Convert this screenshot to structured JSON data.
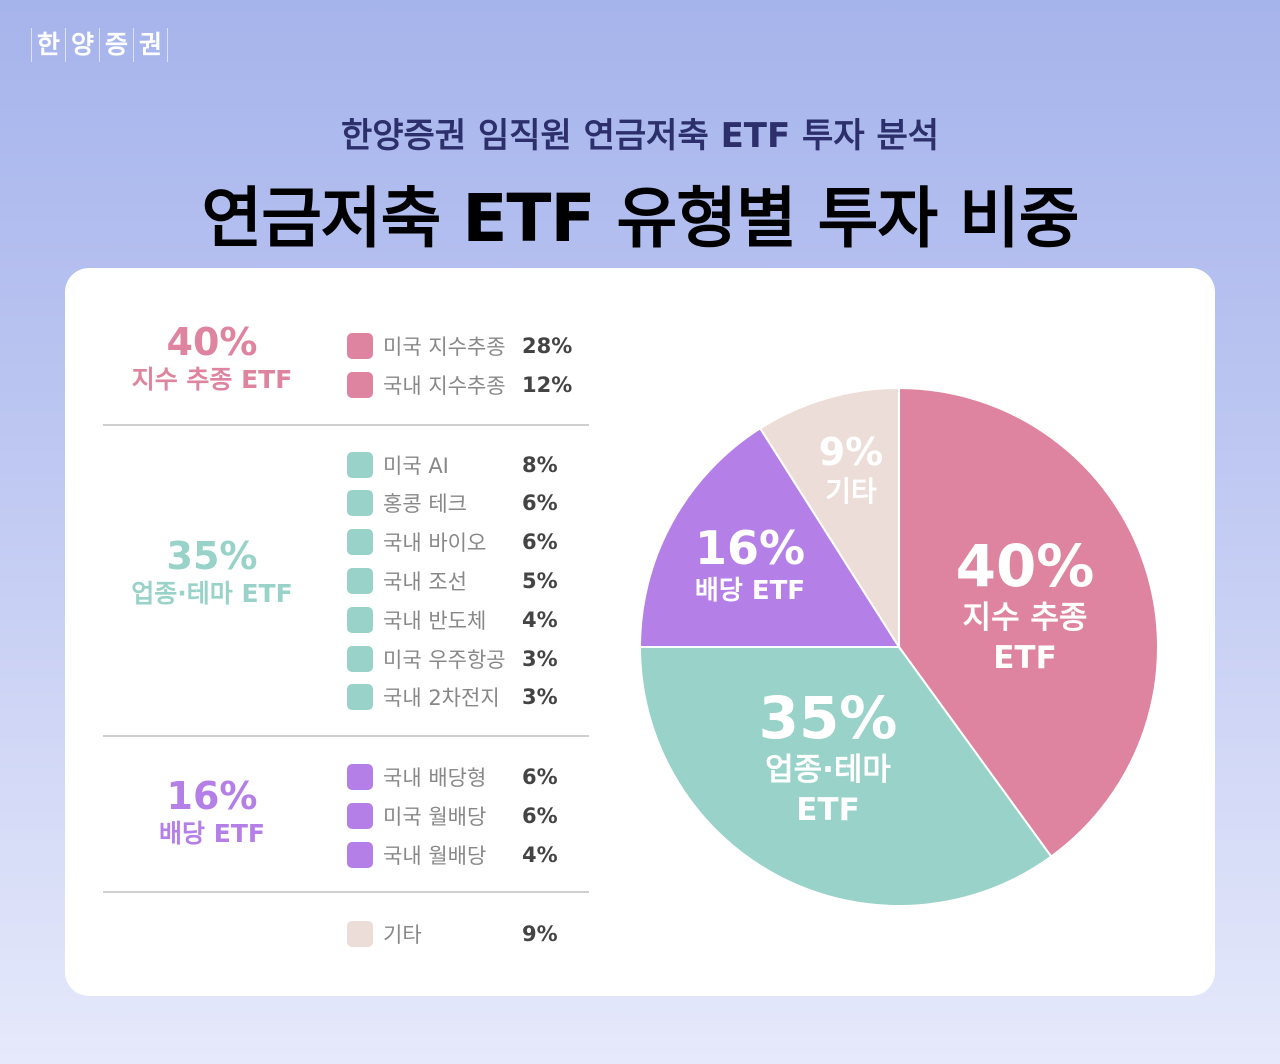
{
  "logo": [
    "한",
    "양",
    "증",
    "권"
  ],
  "subtitle": "한양증권 임직원 연금저축 ETF 투자 분석",
  "title": "연금저축 ETF 유형별 투자 비중",
  "groups": [
    {
      "percent": "40%",
      "name": "지수 추종 ETF",
      "color": "#df84a0"
    },
    {
      "percent": "35%",
      "name": "업종·테마 ETF",
      "color": "#98d2c8"
    },
    {
      "percent": "16%",
      "name": "배당 ETF",
      "color": "#b57fe8"
    }
  ],
  "legend": [
    {
      "label": "미국 지수추종",
      "value": "28%",
      "color": "#df84a0"
    },
    {
      "label": "국내 지수추종",
      "value": "12%",
      "color": "#df84a0"
    },
    {
      "label": "미국 AI",
      "value": "8%",
      "color": "#98d2c8"
    },
    {
      "label": "홍콩 테크",
      "value": "6%",
      "color": "#98d2c8"
    },
    {
      "label": "국내 바이오",
      "value": "6%",
      "color": "#98d2c8"
    },
    {
      "label": "국내 조선",
      "value": "5%",
      "color": "#98d2c8"
    },
    {
      "label": "국내 반도체",
      "value": "4%",
      "color": "#98d2c8"
    },
    {
      "label": "미국 우주항공",
      "value": "3%",
      "color": "#98d2c8"
    },
    {
      "label": "국내 2차전지",
      "value": "3%",
      "color": "#98d2c8"
    },
    {
      "label": "국내 배당형",
      "value": "6%",
      "color": "#b57fe8"
    },
    {
      "label": "미국 월배당",
      "value": "6%",
      "color": "#b57fe8"
    },
    {
      "label": "국내 월배당",
      "value": "4%",
      "color": "#b57fe8"
    },
    {
      "label": "기타",
      "value": "9%",
      "color": "#ecddd8"
    }
  ],
  "chart_data": {
    "type": "pie",
    "start": "top",
    "direction": "clockwise",
    "categories": [
      "지수 추종 ETF",
      "업종·테마 ETF",
      "배당 ETF",
      "기타"
    ],
    "values": [
      40,
      35,
      16,
      9
    ],
    "labels": [
      {
        "percent": "40%",
        "lines": [
          "지수 추종",
          "ETF"
        ]
      },
      {
        "percent": "35%",
        "lines": [
          "업종·테마",
          "ETF"
        ]
      },
      {
        "percent": "16%",
        "lines": [
          "배당 ETF"
        ]
      },
      {
        "percent": "9%",
        "lines": [
          "기타"
        ]
      }
    ],
    "colors": [
      "#df84a0",
      "#98d2c8",
      "#b57fe8",
      "#ecddd8"
    ]
  }
}
